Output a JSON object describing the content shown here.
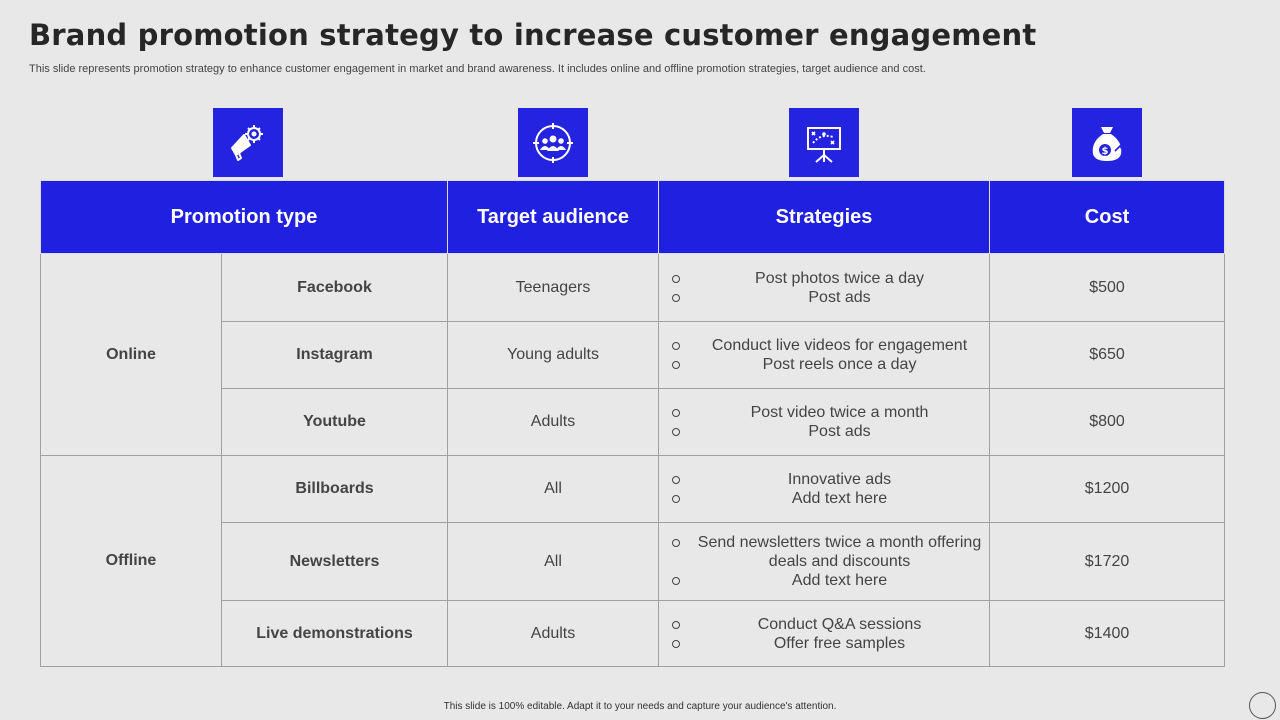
{
  "title": "Brand promotion strategy to increase customer engagement",
  "subtitle": "This slide represents promotion strategy to enhance customer engagement in market and brand awareness. It includes online and offline promotion strategies, target audience and cost.",
  "headers": {
    "promotion_type": "Promotion type",
    "target_audience": "Target audience",
    "strategies": "Strategies",
    "cost": "Cost"
  },
  "icons": [
    "megaphone-icon",
    "audience-target-icon",
    "strategy-board-icon",
    "money-bag-icon"
  ],
  "colors": {
    "accent": "#2020e0",
    "background": "#e8e8e8"
  },
  "groups": {
    "online": "Online",
    "offline": "Offline"
  },
  "rows": [
    {
      "type": "Facebook",
      "audience": "Teenagers",
      "strategies": [
        "Post photos twice a day",
        "Post ads"
      ],
      "cost": "$500"
    },
    {
      "type": "Instagram",
      "audience": "Young adults",
      "strategies": [
        "Conduct live videos for engagement",
        "Post reels once a day"
      ],
      "cost": "$650"
    },
    {
      "type": "Youtube",
      "audience": "Adults",
      "strategies": [
        "Post video twice a month",
        "Post ads"
      ],
      "cost": "$800"
    },
    {
      "type": "Billboards",
      "audience": "All",
      "strategies": [
        "Innovative  ads",
        "Add text here"
      ],
      "cost": "$1200"
    },
    {
      "type": "Newsletters",
      "audience": "All",
      "strategies": [
        "Send newsletters twice a month offering deals and discounts",
        "Add text here"
      ],
      "cost": "$1720"
    },
    {
      "type": "Live demonstrations",
      "audience": "Adults",
      "strategies": [
        "Conduct Q&A sessions",
        "Offer free samples"
      ],
      "cost": "$1400"
    }
  ],
  "footer": "This slide is 100% editable.  Adapt it to your needs and capture your audience's attention."
}
